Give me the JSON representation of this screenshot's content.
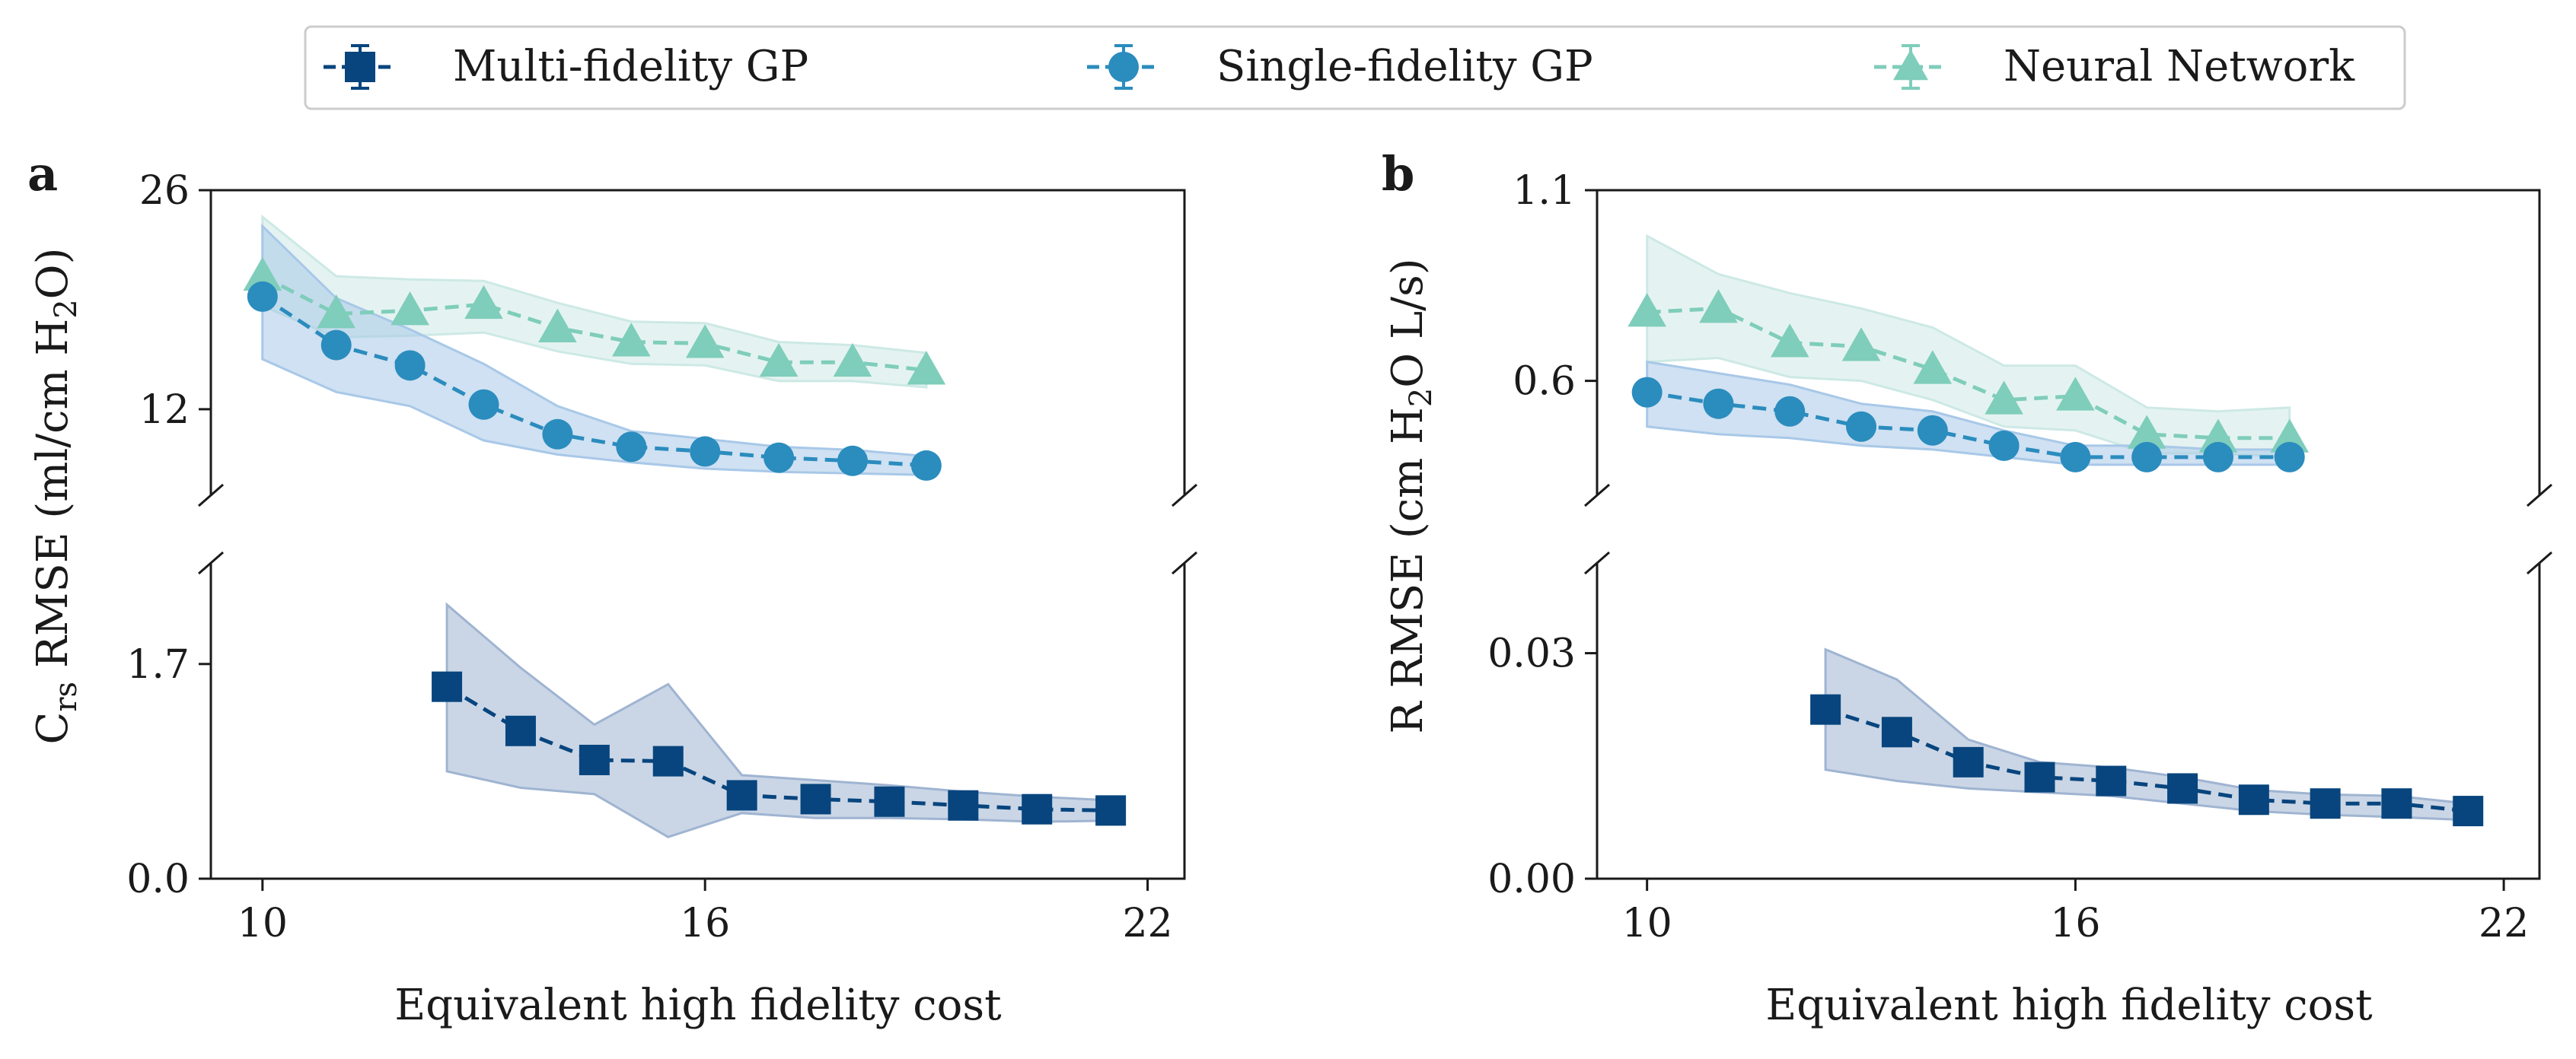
{
  "chart_data": [
    {
      "panel": "a",
      "type": "line",
      "xlabel": "Equivalent high fidelity cost",
      "ylabel": "C_rs RMSE (ml/cm H2O)",
      "ylabel_parts": {
        "main": "C",
        "sub": "rs",
        "rest": " RMSE (ml/cm H",
        "sub2": "2",
        "end": "O)"
      },
      "xlim": [
        9.3,
        22.5
      ],
      "xticks": [
        "10",
        "16",
        "22"
      ],
      "broken_y_axis": true,
      "upper": {
        "ylim": [
          6.5,
          26
        ],
        "yticks": [
          "12",
          "26"
        ],
        "series": [
          {
            "name": "Neural Network",
            "x": [
              10,
              11,
              12,
              13,
              14,
              15,
              16,
              17,
              18,
              19
            ],
            "y": [
              20.5,
              18.1,
              18.3,
              18.7,
              17.2,
              16.3,
              16.2,
              15.0,
              15.0,
              14.5
            ],
            "lower": [
              18.6,
              16.6,
              16.7,
              16.9,
              15.7,
              14.9,
              14.8,
              13.8,
              13.8,
              13.4
            ],
            "upper": [
              24.3,
              20.5,
              20.3,
              20.2,
              18.8,
              17.6,
              17.5,
              16.3,
              16.1,
              15.6
            ]
          },
          {
            "name": "Single-fidelity GP",
            "x": [
              10,
              11,
              12,
              13,
              14,
              15,
              16,
              17,
              18,
              19
            ],
            "y": [
              19.2,
              16.1,
              14.8,
              12.3,
              10.4,
              9.6,
              9.3,
              8.9,
              8.7,
              8.4
            ],
            "lower": [
              15.2,
              13.1,
              12.2,
              10.0,
              9.1,
              8.6,
              8.2,
              8.0,
              7.9,
              7.8
            ],
            "upper": [
              23.7,
              19.1,
              17.1,
              14.9,
              12.2,
              10.6,
              10.1,
              9.6,
              9.4,
              9.0
            ]
          }
        ]
      },
      "lower": {
        "ylim": [
          0,
          2.5
        ],
        "yticks": [
          "0.0",
          "1.7"
        ],
        "series": [
          {
            "name": "Multi-fidelity GP",
            "x": [
              12.5,
              13.5,
              14.5,
              15.5,
              16.5,
              17.5,
              18.5,
              19.5,
              20.5,
              21.5
            ],
            "y": [
              1.52,
              1.17,
              0.94,
              0.93,
              0.66,
              0.63,
              0.61,
              0.58,
              0.55,
              0.54
            ],
            "lower": [
              0.85,
              0.72,
              0.67,
              0.33,
              0.52,
              0.48,
              0.48,
              0.47,
              0.45,
              0.46
            ],
            "upper": [
              2.17,
              1.67,
              1.22,
              1.54,
              0.82,
              0.78,
              0.74,
              0.69,
              0.65,
              0.62
            ]
          }
        ]
      }
    },
    {
      "panel": "b",
      "type": "line",
      "xlabel": "Equivalent high fidelity cost",
      "ylabel": "R RMSE (cm H2O L/s)",
      "ylabel_parts": {
        "main": "R",
        "sub": "",
        "rest": " RMSE (cm H",
        "sub2": "2",
        "end": "O L/s)"
      },
      "xlim": [
        9.3,
        22.5
      ],
      "xticks": [
        "10",
        "16",
        "22"
      ],
      "broken_y_axis": true,
      "upper": {
        "ylim": [
          0.3,
          1.1
        ],
        "yticks": [
          "0.6",
          "1.1"
        ],
        "series": [
          {
            "name": "Neural Network",
            "x": [
              10,
              11,
              12,
              13,
              14,
              15,
              16,
              17,
              18,
              19
            ],
            "y": [
              0.78,
              0.79,
              0.7,
              0.69,
              0.63,
              0.55,
              0.56,
              0.46,
              0.45,
              0.45
            ],
            "lower": [
              0.65,
              0.66,
              0.61,
              0.6,
              0.55,
              0.48,
              0.47,
              0.41,
              0.41,
              0.4
            ],
            "upper": [
              0.98,
              0.88,
              0.83,
              0.79,
              0.74,
              0.64,
              0.64,
              0.53,
              0.52,
              0.53
            ]
          },
          {
            "name": "Single-fidelity GP",
            "x": [
              10,
              11,
              12,
              13,
              14,
              15,
              16,
              17,
              18,
              19
            ],
            "y": [
              0.57,
              0.54,
              0.52,
              0.48,
              0.47,
              0.43,
              0.4,
              0.4,
              0.4,
              0.4
            ],
            "lower": [
              0.48,
              0.46,
              0.45,
              0.43,
              0.42,
              0.4,
              0.38,
              0.38,
              0.38,
              0.38
            ],
            "upper": [
              0.65,
              0.62,
              0.59,
              0.54,
              0.52,
              0.47,
              0.43,
              0.43,
              0.42,
              0.42
            ]
          }
        ]
      },
      "lower": {
        "ylim": [
          0,
          0.042
        ],
        "yticks": [
          "0.00",
          "0.03"
        ],
        "series": [
          {
            "name": "Multi-fidelity GP",
            "x": [
              12.5,
              13.5,
              14.5,
              15.5,
              16.5,
              17.5,
              18.5,
              19.5,
              20.5,
              21.5
            ],
            "y": [
              0.0225,
              0.0195,
              0.0155,
              0.0135,
              0.013,
              0.012,
              0.0105,
              0.01,
              0.01,
              0.009
            ],
            "lower": [
              0.0145,
              0.013,
              0.012,
              0.0115,
              0.011,
              0.01,
              0.009,
              0.0085,
              0.0082,
              0.0078
            ],
            "upper": [
              0.0305,
              0.0265,
              0.0185,
              0.0155,
              0.0148,
              0.0135,
              0.0118,
              0.0112,
              0.011,
              0.01
            ]
          }
        ]
      }
    }
  ],
  "legend": {
    "placement": "top-center",
    "items": [
      {
        "label": "Multi-fidelity GP",
        "marker": "square",
        "color": "#08457e"
      },
      {
        "label": "Single-fidelity GP",
        "marker": "circle",
        "color": "#2b8cbe"
      },
      {
        "label": "Neural Network",
        "marker": "triangle",
        "color": "#7fcdbb"
      }
    ]
  },
  "colors": {
    "Multi-fidelity GP": {
      "line": "#08457e",
      "band": "#9fb4d1"
    },
    "Single-fidelity GP": {
      "line": "#2b8cbe",
      "band": "#a8c8e8"
    },
    "Neural Network": {
      "line": "#7fcdbb",
      "band": "#cde9e5"
    }
  }
}
